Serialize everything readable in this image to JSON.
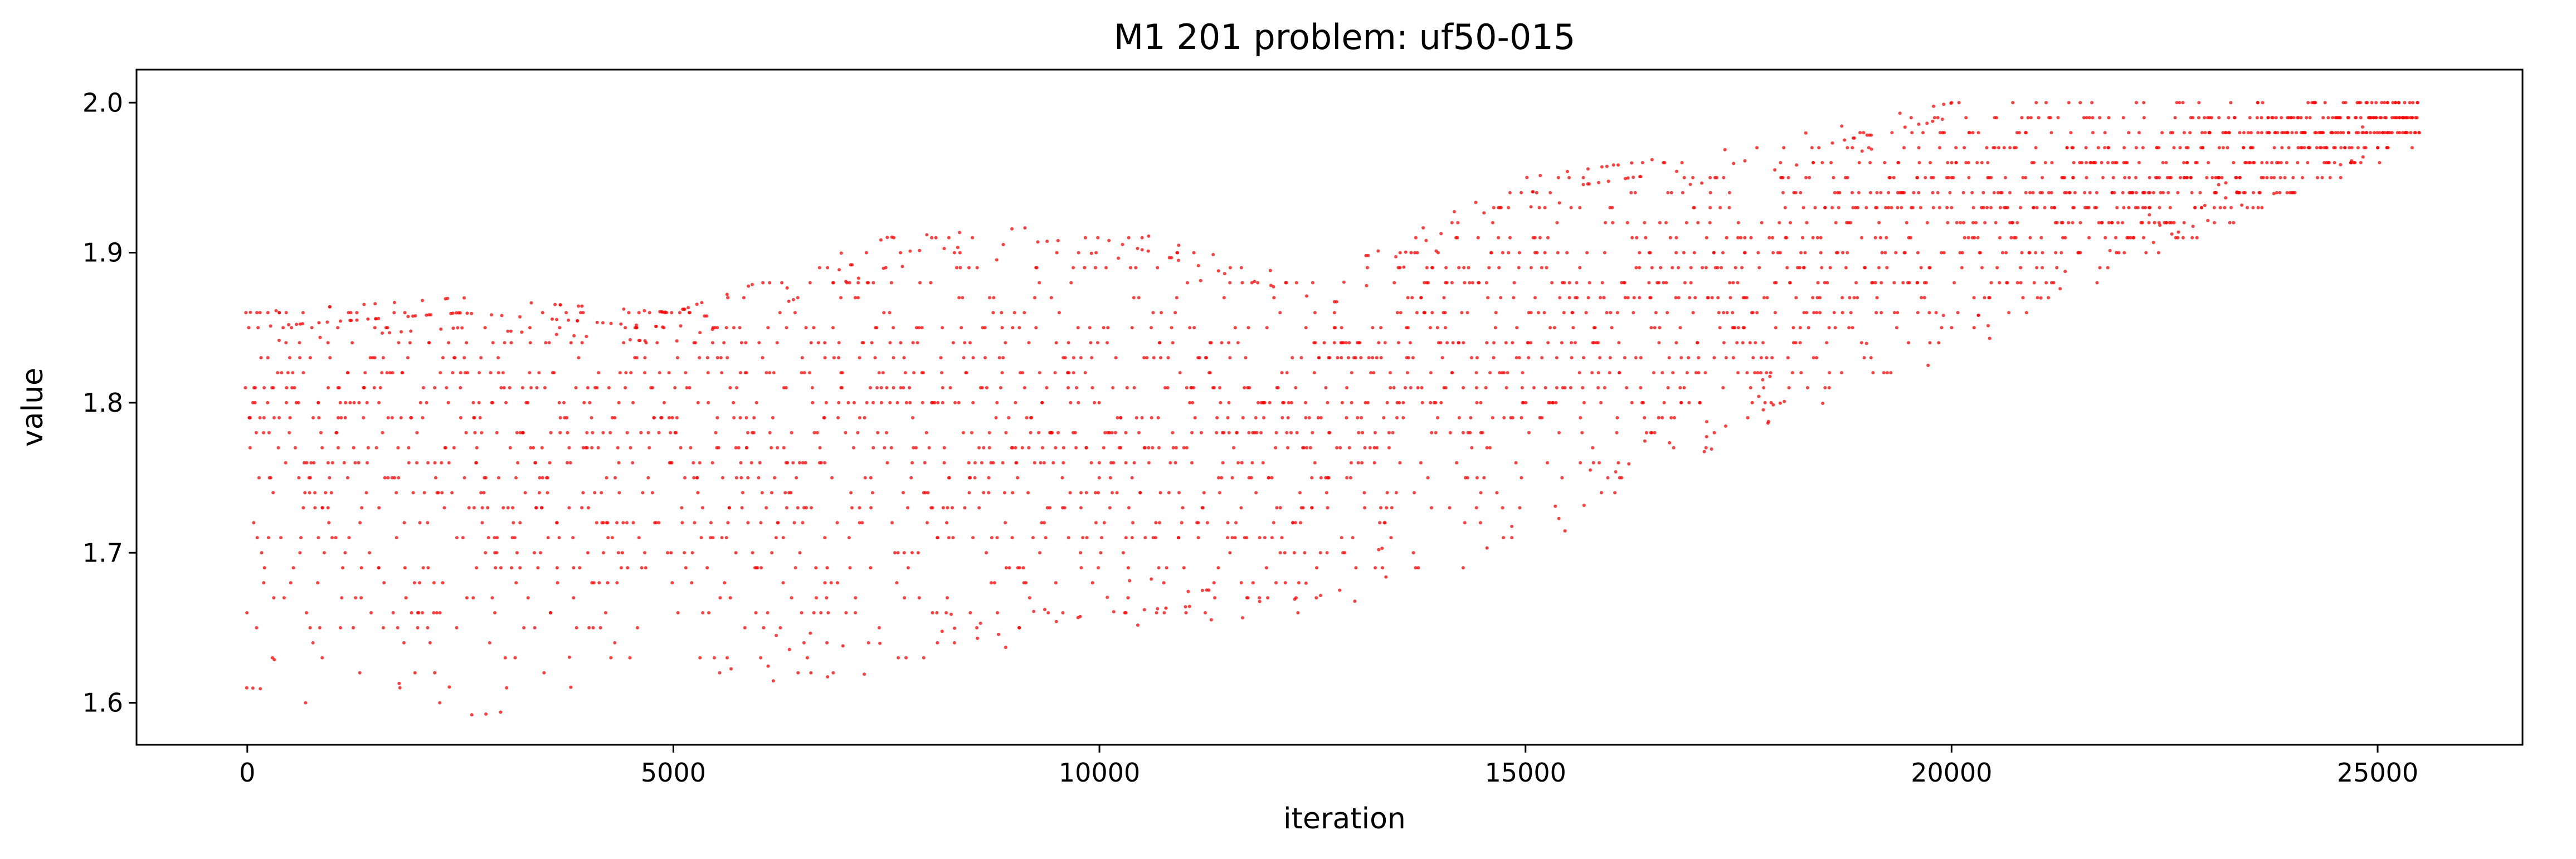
{
  "chart_data": {
    "type": "scatter",
    "title": "M1 201 problem: uf50-015",
    "xlabel": "iteration",
    "ylabel": "value",
    "xlim": [
      -1300,
      26700
    ],
    "ylim": [
      1.572,
      2.022
    ],
    "xticks": [
      0,
      5000,
      10000,
      15000,
      20000,
      25000
    ],
    "xtick_labels": [
      "0",
      "5000",
      "10000",
      "15000",
      "20000",
      "25000"
    ],
    "yticks": [
      1.6,
      1.7,
      1.8,
      1.9,
      2.0
    ],
    "ytick_labels": [
      "1.6",
      "1.7",
      "1.8",
      "1.9",
      "2.0"
    ],
    "grid": false,
    "legend": "none",
    "marker_color": "#ff0000",
    "series": [
      {
        "x_range": [
          0,
          25500
        ],
        "points_approx": 25500,
        "y_step": 0.01,
        "trend_envelope": [
          {
            "x": 0,
            "y_min": 1.6,
            "y_max": 1.86,
            "y_center": 1.77
          },
          {
            "x": 2500,
            "y_min": 1.59,
            "y_max": 1.87,
            "y_center": 1.77
          },
          {
            "x": 5000,
            "y_min": 1.61,
            "y_max": 1.86,
            "y_center": 1.77
          },
          {
            "x": 7500,
            "y_min": 1.62,
            "y_max": 1.91,
            "y_center": 1.77
          },
          {
            "x": 10000,
            "y_min": 1.65,
            "y_max": 1.92,
            "y_center": 1.78
          },
          {
            "x": 12500,
            "y_min": 1.66,
            "y_max": 1.88,
            "y_center": 1.78
          },
          {
            "x": 15000,
            "y_min": 1.7,
            "y_max": 1.95,
            "y_center": 1.84
          },
          {
            "x": 17500,
            "y_min": 1.78,
            "y_max": 1.97,
            "y_center": 1.87
          },
          {
            "x": 20000,
            "y_min": 1.83,
            "y_max": 2.0,
            "y_center": 1.93
          },
          {
            "x": 22500,
            "y_min": 1.9,
            "y_max": 2.0,
            "y_center": 1.95
          },
          {
            "x": 25500,
            "y_min": 1.97,
            "y_max": 2.0,
            "y_center": 1.99
          }
        ]
      }
    ]
  }
}
